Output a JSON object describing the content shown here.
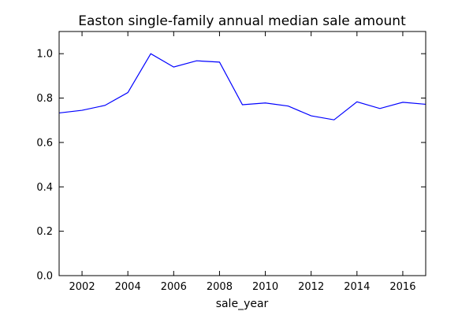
{
  "chart_data": {
    "type": "line",
    "title": "Easton single-family annual median sale amount",
    "xlabel": "sale_year",
    "ylabel": "",
    "xlim": [
      2001,
      2017
    ],
    "ylim": [
      0.0,
      1.1
    ],
    "grid": false,
    "x_ticks": [
      2002,
      2004,
      2006,
      2008,
      2010,
      2012,
      2014,
      2016
    ],
    "x_tick_labels": [
      "2002",
      "2004",
      "2006",
      "2008",
      "2010",
      "2012",
      "2014",
      "2016"
    ],
    "y_ticks": [
      0.0,
      0.2,
      0.4,
      0.6,
      0.8,
      1.0
    ],
    "y_tick_labels": [
      "0.0",
      "0.2",
      "0.4",
      "0.6",
      "0.8",
      "1.0"
    ],
    "series": [
      {
        "color": "#0000ff",
        "x": [
          2001,
          2002,
          2003,
          2004,
          2005,
          2006,
          2007,
          2008,
          2009,
          2010,
          2011,
          2012,
          2013,
          2014,
          2015,
          2016,
          2017
        ],
        "y": [
          0.733,
          0.745,
          0.767,
          0.825,
          1.0,
          0.94,
          0.968,
          0.962,
          0.77,
          0.778,
          0.764,
          0.72,
          0.702,
          0.783,
          0.753,
          0.781,
          0.772
        ]
      }
    ]
  }
}
